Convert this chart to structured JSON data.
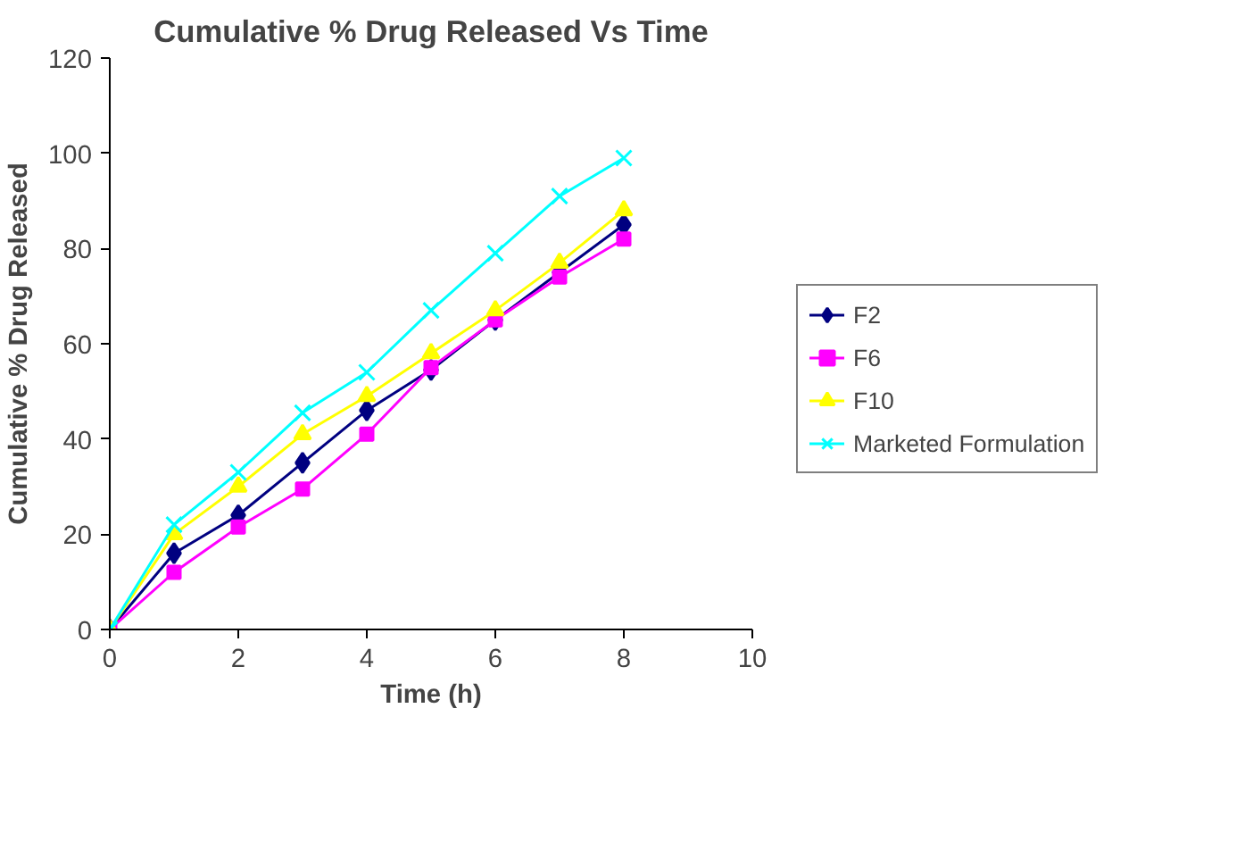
{
  "chart_data": {
    "type": "line",
    "title": "Cumulative % Drug Released Vs Time",
    "xlabel": "Time (h)",
    "ylabel": "Cumulative % Drug Released",
    "x": [
      0,
      1,
      2,
      3,
      4,
      5,
      6,
      7,
      8
    ],
    "xlim": [
      0,
      10
    ],
    "xticks": [
      0,
      2,
      4,
      6,
      8,
      10
    ],
    "ylim": [
      0,
      120
    ],
    "yticks": [
      0,
      20,
      40,
      60,
      80,
      100,
      120
    ],
    "grid": false,
    "legend": "right",
    "series": [
      {
        "name": "F2",
        "color": "#000080",
        "marker": "diamond",
        "values": [
          0,
          16,
          24,
          35,
          46,
          54.5,
          65,
          75,
          85
        ]
      },
      {
        "name": "F6",
        "color": "#ff00ff",
        "marker": "square",
        "values": [
          0,
          12,
          21.5,
          29.5,
          41,
          55,
          65,
          74,
          82
        ]
      },
      {
        "name": "F10",
        "color": "#ffff00",
        "marker": "triangle",
        "values": [
          0,
          20,
          30,
          41,
          49,
          58,
          67,
          77,
          88
        ]
      },
      {
        "name": "Marketed Formulation",
        "color": "#00ffff",
        "marker": "cross",
        "values": [
          0,
          22,
          33,
          45.5,
          54,
          67,
          79,
          91,
          99
        ]
      }
    ]
  }
}
